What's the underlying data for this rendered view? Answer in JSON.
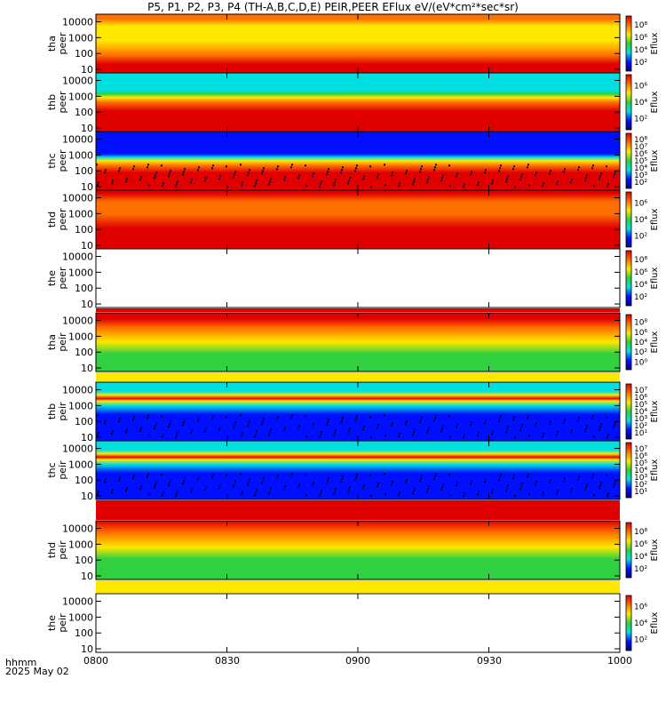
{
  "title": "P5, P1, P2, P3, P4 (TH-A,B,C,D,E) PEIR,PEER EFlux eV/(eV*cm²*sec*sr)",
  "colorbar_label": "Eflux",
  "x_axis": {
    "ticks": [
      "0800",
      "0830",
      "0900",
      "0930",
      "1000"
    ],
    "corner_label_1": "hhmm",
    "corner_label_2": "2025 May 02"
  },
  "y_axis": {
    "scale": "log",
    "ticks": [
      "10",
      "100",
      "1000",
      "10000"
    ]
  },
  "chart_data": {
    "type": "heatmap",
    "title": "P5, P1, P2, P3, P4 (TH-A,B,C,D,E) PEIR,PEER EFlux eV/(eV*cm²*sec*sr)",
    "x_range": [
      "0800",
      "1000"
    ],
    "y_range_eV": [
      5,
      30000
    ],
    "y_scale": "log",
    "panels": [
      {
        "probe": "tha",
        "species": "peer",
        "ylabel": "tha peer",
        "cbar_ticks": [
          "10²",
          "10⁴",
          "10⁶",
          "10⁸"
        ],
        "state": "data",
        "profile": "electron_hot"
      },
      {
        "probe": "thb",
        "species": "peer",
        "ylabel": "thb peer",
        "cbar_ticks": [
          "10²",
          "10⁴",
          "10⁶"
        ],
        "state": "data",
        "profile": "electron_cold"
      },
      {
        "probe": "thc",
        "species": "peer",
        "ylabel": "thc peer",
        "cbar_ticks": [
          "10²",
          "10³",
          "10⁴",
          "10⁵",
          "10⁶",
          "10⁷",
          "10⁸"
        ],
        "state": "data",
        "profile": "electron_cold2"
      },
      {
        "probe": "thd",
        "species": "peer",
        "ylabel": "thd peer",
        "cbar_ticks": [
          "10²",
          "10⁴",
          "10⁶"
        ],
        "state": "data",
        "profile": "electron_warm"
      },
      {
        "probe": "the",
        "species": "peer",
        "ylabel": "the peer",
        "cbar_ticks": [
          "10²",
          "10⁴",
          "10⁶",
          "10⁸"
        ],
        "state": "empty",
        "profile": "none"
      },
      {
        "probe": "tha",
        "species": "peir",
        "ylabel": "tha peir",
        "cbar_ticks": [
          "10⁰",
          "10²",
          "10⁴",
          "10⁶",
          "10⁸"
        ],
        "state": "data",
        "profile": "ion_hot"
      },
      {
        "probe": "thb",
        "species": "peir",
        "ylabel": "thb peir",
        "cbar_ticks": [
          "10¹",
          "10²",
          "10³",
          "10⁴",
          "10⁵",
          "10⁶",
          "10⁷"
        ],
        "state": "data",
        "profile": "ion_band"
      },
      {
        "probe": "thc",
        "species": "peir",
        "ylabel": "thc peir",
        "cbar_ticks": [
          "10¹",
          "10²",
          "10³",
          "10⁴",
          "10⁵",
          "10⁶",
          "10⁷"
        ],
        "state": "data",
        "profile": "ion_band"
      },
      {
        "probe": "thd",
        "species": "peir",
        "ylabel": "thd peir",
        "cbar_ticks": [
          "10²",
          "10⁴",
          "10⁶",
          "10⁸"
        ],
        "state": "data",
        "profile": "ion_hot2"
      },
      {
        "probe": "the",
        "species": "peir",
        "ylabel": "the peir",
        "cbar_ticks": [
          "10²",
          "10⁴",
          "10⁶"
        ],
        "state": "empty",
        "profile": "none"
      }
    ],
    "grid": false,
    "colormap": "rainbow (blue-cyan-green-yellow-red)"
  },
  "colors": {
    "red": "#e00000",
    "orange": "#ff7000",
    "yellow": "#ffe800",
    "green": "#30d040",
    "cyan": "#00e0e0",
    "blue": "#0010ff",
    "navy": "#000080"
  }
}
